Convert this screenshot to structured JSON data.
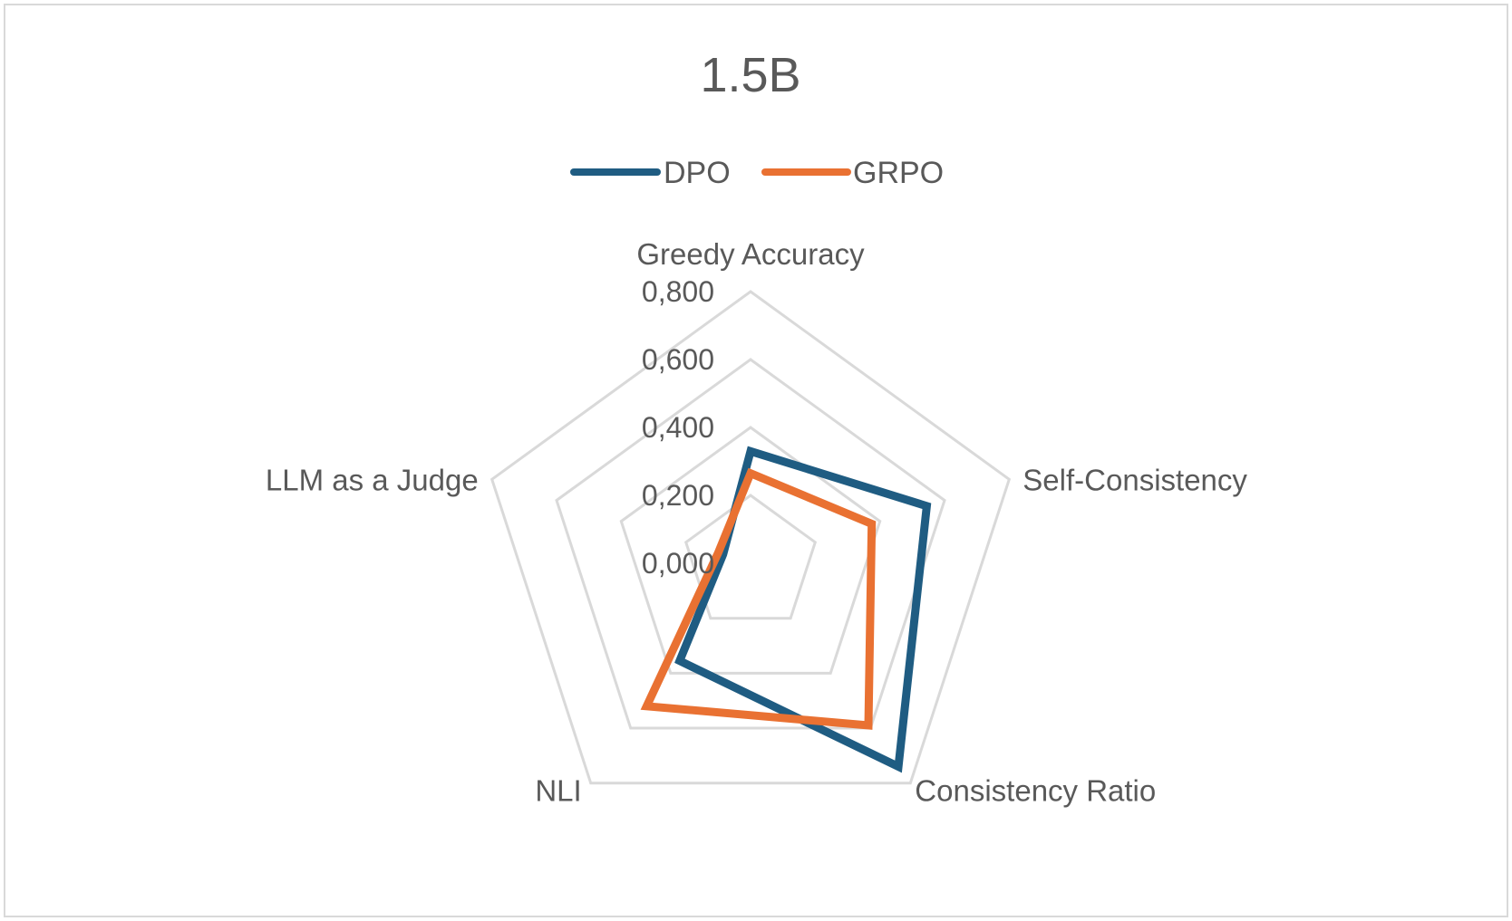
{
  "chart_data": {
    "type": "radar",
    "title": "1.5B",
    "categories": [
      "Greedy Accuracy",
      "Self-Consistency",
      "Consistency Ratio",
      "NLI",
      "LLM as a Judge"
    ],
    "rlim": [
      0,
      0.8
    ],
    "ticks": [
      "0,000",
      "0,200",
      "0,400",
      "0,600",
      "0,800"
    ],
    "tick_values": [
      0,
      0.2,
      0.4,
      0.6,
      0.8
    ],
    "legend_position": "top",
    "grid": true,
    "series": [
      {
        "name": "DPO",
        "color": "#1f5c82",
        "values": [
          0.33,
          0.545,
          0.74,
          0.355,
          0.085
        ]
      },
      {
        "name": "GRPO",
        "color": "#e97132",
        "values": [
          0.265,
          0.375,
          0.59,
          0.52,
          0.1
        ]
      }
    ]
  }
}
